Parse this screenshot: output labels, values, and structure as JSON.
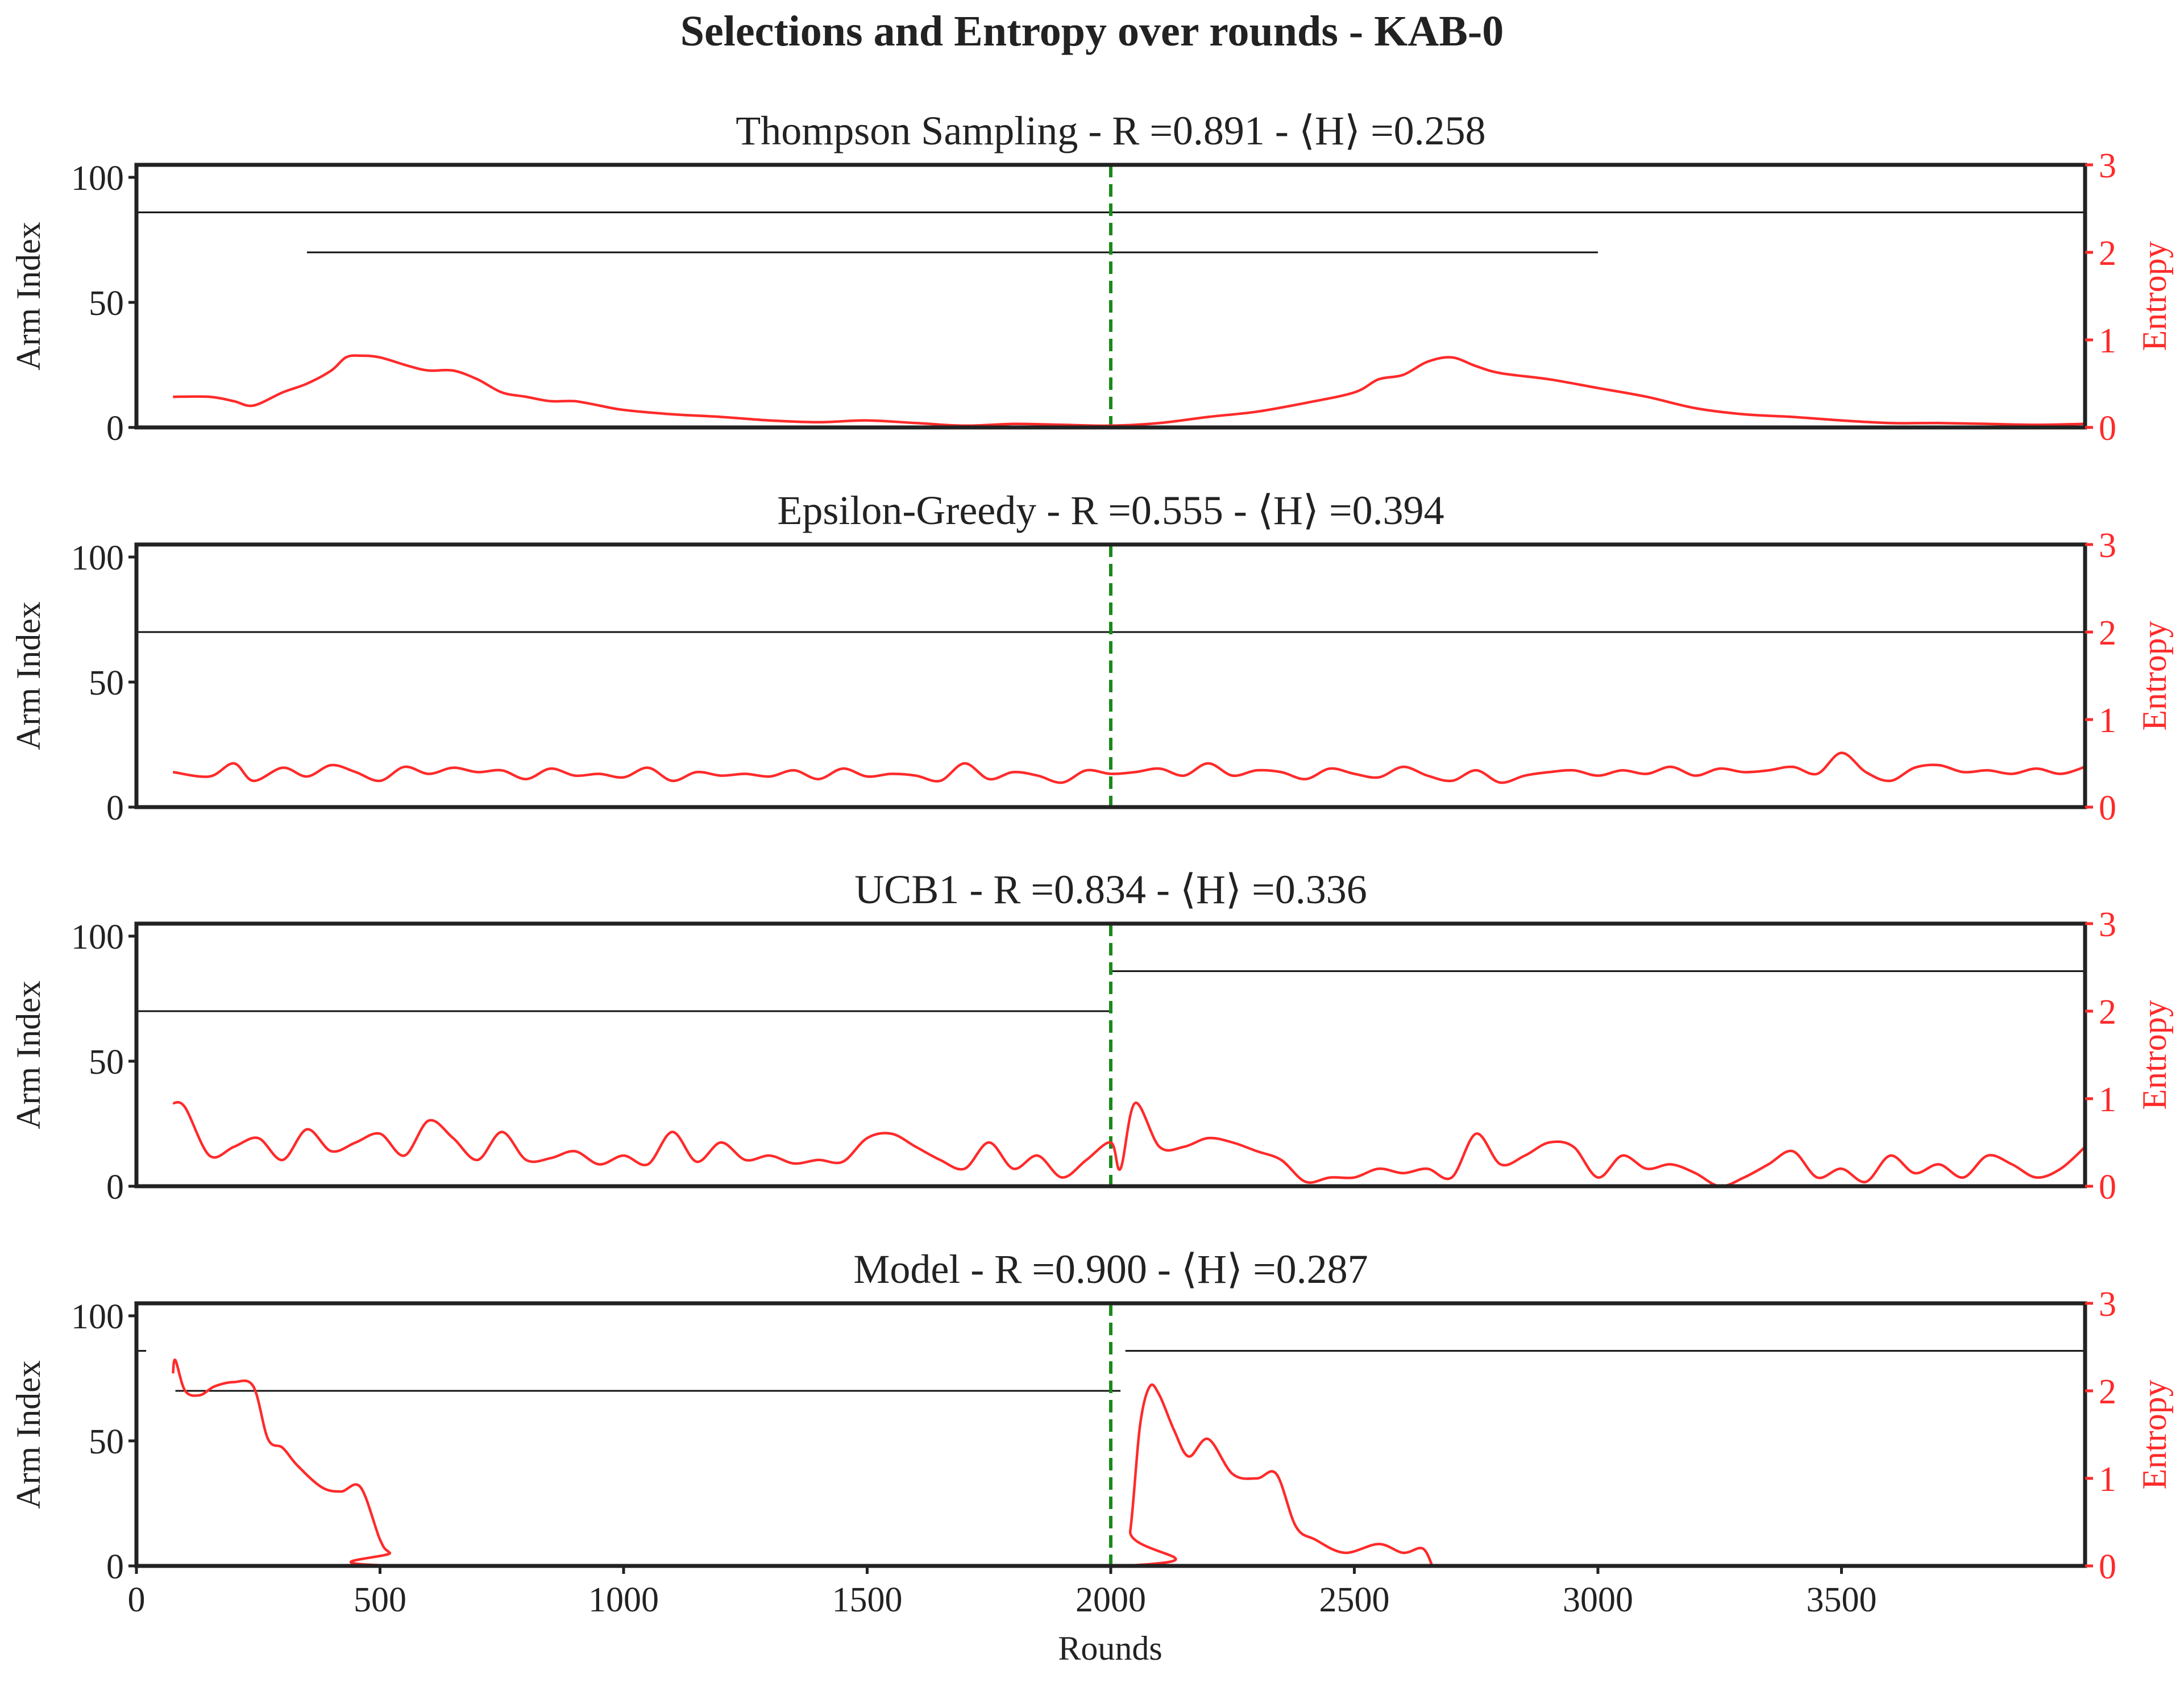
{
  "figure": {
    "title": "Selections and Entropy over rounds - KAB-0",
    "xlabel": "Rounds",
    "ylabel_left": "Arm Index",
    "ylabel_right": "Entropy",
    "x_ticks": [
      "0",
      "500",
      "1000",
      "1500",
      "2000",
      "2500",
      "3000",
      "3500"
    ],
    "y_ticks_left": [
      "0",
      "50",
      "100"
    ],
    "y_ticks_right": [
      "0",
      "1",
      "2",
      "3"
    ],
    "colors": {
      "entropy": "#ff2a2a",
      "change_point": "#1a8a1a",
      "selection": "#111111",
      "axes": "#222222"
    }
  },
  "chart_data": [
    {
      "type": "line",
      "title": "Thompson Sampling - R =0.891 - ⟨H⟩ =0.258",
      "method": "Thompson Sampling",
      "R": "0.891",
      "H": "0.258",
      "xlabel": "",
      "ylabel": "Arm Index",
      "y2label": "Entropy",
      "xlim": [
        0,
        4000
      ],
      "ylim": [
        0,
        105
      ],
      "y2lim": [
        0,
        3
      ],
      "change_point": 2000,
      "selections": [
        {
          "arm": 86,
          "x": [
            0,
            4000
          ]
        },
        {
          "arm": 70,
          "x": [
            350,
            3000
          ]
        }
      ],
      "entropy": {
        "x": [
          75,
          150,
          200,
          240,
          300,
          350,
          400,
          430,
          460,
          500,
          560,
          600,
          650,
          700,
          750,
          800,
          850,
          900,
          950,
          1000,
          1100,
          1200,
          1300,
          1400,
          1500,
          1600,
          1700,
          1800,
          1900,
          2000,
          2100,
          2200,
          2300,
          2400,
          2500,
          2550,
          2600,
          2650,
          2700,
          2750,
          2800,
          2900,
          3000,
          3100,
          3200,
          3300,
          3400,
          3500,
          3600,
          3700,
          3800,
          3900,
          4000
        ],
        "y": [
          0.35,
          0.35,
          0.3,
          0.25,
          0.4,
          0.5,
          0.65,
          0.8,
          0.82,
          0.8,
          0.7,
          0.65,
          0.65,
          0.55,
          0.4,
          0.35,
          0.3,
          0.3,
          0.25,
          0.2,
          0.15,
          0.12,
          0.08,
          0.06,
          0.08,
          0.05,
          0.02,
          0.04,
          0.03,
          0.02,
          0.05,
          0.12,
          0.18,
          0.28,
          0.4,
          0.55,
          0.6,
          0.75,
          0.8,
          0.7,
          0.62,
          0.55,
          0.45,
          0.35,
          0.22,
          0.15,
          0.12,
          0.08,
          0.05,
          0.05,
          0.04,
          0.03,
          0.04
        ]
      }
    },
    {
      "type": "line",
      "title": "Epsilon-Greedy - R =0.555 - ⟨H⟩ =0.394",
      "method": "Epsilon-Greedy",
      "R": "0.555",
      "H": "0.394",
      "xlabel": "",
      "ylabel": "Arm Index",
      "y2label": "Entropy",
      "xlim": [
        0,
        4000
      ],
      "ylim": [
        0,
        105
      ],
      "y2lim": [
        0,
        3
      ],
      "change_point": 2000,
      "selections": [
        {
          "arm": 70,
          "x": [
            0,
            4000
          ]
        }
      ],
      "entropy": {
        "x": [
          75,
          150,
          200,
          240,
          300,
          350,
          400,
          450,
          500,
          550,
          600,
          650,
          700,
          750,
          800,
          850,
          900,
          950,
          1000,
          1050,
          1100,
          1150,
          1200,
          1250,
          1300,
          1350,
          1400,
          1450,
          1500,
          1550,
          1600,
          1650,
          1700,
          1750,
          1800,
          1850,
          1900,
          1950,
          2000,
          2050,
          2100,
          2150,
          2200,
          2250,
          2300,
          2350,
          2400,
          2450,
          2500,
          2550,
          2600,
          2650,
          2700,
          2750,
          2800,
          2850,
          2900,
          2950,
          3000,
          3050,
          3100,
          3150,
          3200,
          3250,
          3300,
          3350,
          3400,
          3450,
          3500,
          3550,
          3600,
          3650,
          3700,
          3750,
          3800,
          3850,
          3900,
          3950,
          4000
        ],
        "y": [
          0.4,
          0.35,
          0.5,
          0.3,
          0.45,
          0.35,
          0.48,
          0.4,
          0.3,
          0.46,
          0.38,
          0.45,
          0.4,
          0.42,
          0.32,
          0.44,
          0.36,
          0.38,
          0.34,
          0.45,
          0.3,
          0.4,
          0.36,
          0.38,
          0.35,
          0.42,
          0.32,
          0.44,
          0.35,
          0.38,
          0.36,
          0.3,
          0.5,
          0.32,
          0.4,
          0.36,
          0.28,
          0.42,
          0.38,
          0.4,
          0.44,
          0.36,
          0.5,
          0.36,
          0.42,
          0.4,
          0.32,
          0.44,
          0.38,
          0.34,
          0.46,
          0.36,
          0.3,
          0.42,
          0.28,
          0.36,
          0.4,
          0.42,
          0.36,
          0.42,
          0.38,
          0.46,
          0.36,
          0.44,
          0.4,
          0.42,
          0.46,
          0.38,
          0.62,
          0.4,
          0.3,
          0.45,
          0.48,
          0.4,
          0.42,
          0.38,
          0.44,
          0.38,
          0.46
        ]
      }
    },
    {
      "type": "line",
      "title": "UCB1 - R =0.834 - ⟨H⟩ =0.336",
      "method": "UCB1",
      "R": "0.834",
      "H": "0.336",
      "xlabel": "",
      "ylabel": "Arm Index",
      "y2label": "Entropy",
      "xlim": [
        0,
        4000
      ],
      "ylim": [
        0,
        105
      ],
      "y2lim": [
        0,
        3
      ],
      "change_point": 2000,
      "selections": [
        {
          "arm": 70,
          "x": [
            0,
            2000
          ]
        },
        {
          "arm": 86,
          "x": [
            2000,
            4000
          ]
        }
      ],
      "entropy": {
        "x": [
          75,
          100,
          150,
          200,
          250,
          300,
          350,
          400,
          450,
          500,
          550,
          600,
          650,
          700,
          750,
          800,
          850,
          900,
          950,
          1000,
          1050,
          1100,
          1150,
          1200,
          1250,
          1300,
          1350,
          1400,
          1450,
          1500,
          1550,
          1600,
          1650,
          1700,
          1750,
          1800,
          1850,
          1900,
          1950,
          2000,
          2020,
          2050,
          2100,
          2150,
          2200,
          2250,
          2300,
          2350,
          2400,
          2450,
          2500,
          2550,
          2600,
          2650,
          2700,
          2750,
          2800,
          2850,
          2900,
          2950,
          3000,
          3050,
          3100,
          3150,
          3200,
          3250,
          3300,
          3350,
          3400,
          3450,
          3500,
          3550,
          3600,
          3650,
          3700,
          3750,
          3800,
          3850,
          3900,
          3950,
          4000
        ],
        "y": [
          0.95,
          0.9,
          0.35,
          0.45,
          0.55,
          0.3,
          0.65,
          0.4,
          0.5,
          0.6,
          0.35,
          0.75,
          0.55,
          0.3,
          0.62,
          0.3,
          0.32,
          0.4,
          0.25,
          0.35,
          0.25,
          0.62,
          0.28,
          0.5,
          0.3,
          0.35,
          0.26,
          0.3,
          0.28,
          0.55,
          0.6,
          0.45,
          0.3,
          0.2,
          0.5,
          0.2,
          0.35,
          0.1,
          0.3,
          0.5,
          0.2,
          0.95,
          0.45,
          0.45,
          0.55,
          0.5,
          0.4,
          0.3,
          0.05,
          0.1,
          0.1,
          0.2,
          0.15,
          0.2,
          0.1,
          0.6,
          0.25,
          0.35,
          0.5,
          0.45,
          0.1,
          0.35,
          0.2,
          0.25,
          0.15,
          0.0,
          0.1,
          0.25,
          0.4,
          0.1,
          0.2,
          0.05,
          0.35,
          0.15,
          0.25,
          0.1,
          0.35,
          0.25,
          0.1,
          0.2,
          0.45
        ]
      }
    },
    {
      "type": "line",
      "title": "Model - R =0.900 - ⟨H⟩ =0.287",
      "method": "Model",
      "R": "0.900",
      "H": "0.287",
      "xlabel": "Rounds",
      "ylabel": "Arm Index",
      "y2label": "Entropy",
      "xlim": [
        0,
        4000
      ],
      "ylim": [
        0,
        105
      ],
      "y2lim": [
        0,
        3
      ],
      "change_point": 2000,
      "selections": [
        {
          "arm": 86,
          "x": [
            0,
            20
          ]
        },
        {
          "arm": 70,
          "x": [
            80,
            2020
          ]
        },
        {
          "arm": 86,
          "x": [
            2030,
            4000
          ]
        }
      ],
      "entropy": {
        "x": [
          75,
          80,
          100,
          130,
          160,
          200,
          240,
          270,
          300,
          330,
          380,
          420,
          460,
          500,
          520,
          560,
          2020,
          2040,
          2060,
          2080,
          2100,
          2130,
          2160,
          2200,
          2250,
          2300,
          2340,
          2380,
          2420,
          2480,
          2550,
          2600,
          2640,
          2660
        ],
        "y": [
          2.2,
          2.35,
          2.0,
          1.95,
          2.05,
          2.1,
          2.05,
          1.45,
          1.35,
          1.15,
          0.9,
          0.85,
          0.9,
          0.3,
          0.15,
          0.0,
          0.0,
          0.4,
          1.6,
          2.05,
          1.95,
          1.55,
          1.25,
          1.45,
          1.05,
          1.0,
          1.05,
          0.45,
          0.3,
          0.15,
          0.25,
          0.15,
          0.2,
          0.0
        ]
      }
    }
  ]
}
